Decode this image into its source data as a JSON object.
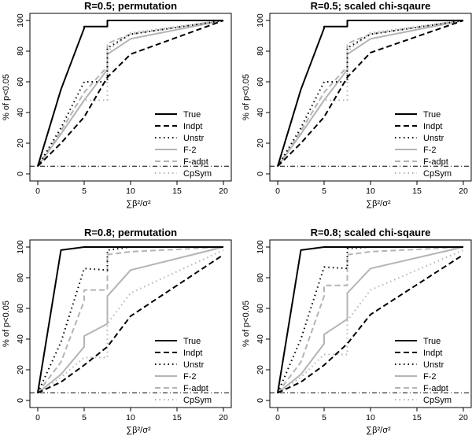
{
  "chart_data": [
    {
      "type": "line",
      "title": "R=0.5; permutation",
      "xlabel": "∑β²/σ²",
      "ylabel": "% of p<0.05",
      "xlim": [
        0,
        20
      ],
      "ylim": [
        0,
        100
      ],
      "xticks": [
        0,
        5,
        10,
        15,
        20
      ],
      "yticks": [
        0,
        20,
        40,
        60,
        80,
        100
      ],
      "reference_line": 5,
      "legend_position": "right",
      "series": [
        {
          "name": "True",
          "style": "solid-black",
          "x": [
            0,
            2.5,
            5,
            5,
            7.5,
            7.5,
            10,
            20
          ],
          "y": [
            5,
            55,
            95,
            96,
            96,
            100,
            100,
            100
          ]
        },
        {
          "name": "Indpt",
          "style": "dashed-black",
          "x": [
            0,
            2.5,
            5,
            7.5,
            10,
            20
          ],
          "y": [
            5,
            20,
            37,
            63,
            78,
            100
          ]
        },
        {
          "name": "Unstr",
          "style": "dotted-black",
          "x": [
            0,
            2.5,
            5,
            5,
            7.5,
            7.5,
            10,
            20
          ],
          "y": [
            5,
            30,
            60,
            60,
            60,
            82,
            91,
            100
          ]
        },
        {
          "name": "F-2",
          "style": "solid-gray",
          "x": [
            0,
            2.5,
            5,
            5,
            7.5,
            7.5,
            10,
            20
          ],
          "y": [
            5,
            26,
            48,
            48,
            68,
            78,
            88,
            100
          ]
        },
        {
          "name": "F-adpt",
          "style": "dashed-gray",
          "x": [
            0,
            2.5,
            5,
            5,
            7.5,
            7.5,
            10,
            20
          ],
          "y": [
            5,
            28,
            53,
            53,
            70,
            85,
            91,
            100
          ]
        },
        {
          "name": "CpSym",
          "style": "dotted-gray",
          "x": [
            0,
            2.5,
            5,
            7.5,
            7.5,
            10,
            20
          ],
          "y": [
            5,
            26,
            48,
            48,
            80,
            92,
            100
          ]
        }
      ]
    },
    {
      "type": "line",
      "title": "R=0.5; scaled chi-sqaure",
      "xlabel": "∑β²/σ²",
      "ylabel": "% of p<0.05",
      "xlim": [
        0,
        20
      ],
      "ylim": [
        0,
        100
      ],
      "xticks": [
        0,
        5,
        10,
        15,
        20
      ],
      "yticks": [
        0,
        20,
        40,
        60,
        80,
        100
      ],
      "reference_line": 5,
      "legend_position": "right",
      "series": [
        {
          "name": "True",
          "style": "solid-black",
          "x": [
            0,
            2.5,
            5,
            5,
            7.5,
            7.5,
            10,
            20
          ],
          "y": [
            5,
            55,
            95,
            96,
            96,
            100,
            100,
            100
          ]
        },
        {
          "name": "Indpt",
          "style": "dashed-black",
          "x": [
            0,
            2.5,
            5,
            7.5,
            10,
            20
          ],
          "y": [
            5,
            20,
            37,
            63,
            79,
            100
          ]
        },
        {
          "name": "Unstr",
          "style": "dotted-black",
          "x": [
            0,
            2.5,
            5,
            5,
            7.5,
            7.5,
            10,
            20
          ],
          "y": [
            5,
            30,
            60,
            60,
            60,
            82,
            91,
            100
          ]
        },
        {
          "name": "F-2",
          "style": "solid-gray",
          "x": [
            0,
            2.5,
            5,
            5,
            7.5,
            7.5,
            10,
            20
          ],
          "y": [
            5,
            26,
            48,
            48,
            68,
            78,
            88,
            100
          ]
        },
        {
          "name": "F-adpt",
          "style": "dashed-gray",
          "x": [
            0,
            2.5,
            5,
            5,
            7.5,
            7.5,
            10,
            20
          ],
          "y": [
            5,
            28,
            53,
            53,
            70,
            85,
            91,
            100
          ]
        },
        {
          "name": "CpSym",
          "style": "dotted-gray",
          "x": [
            0,
            2.5,
            5,
            7.5,
            7.5,
            10,
            20
          ],
          "y": [
            5,
            26,
            48,
            48,
            80,
            92,
            100
          ]
        }
      ]
    },
    {
      "type": "line",
      "title": "R=0.8; permutation",
      "xlabel": "∑β²/σ²",
      "ylabel": "% of p<0.05",
      "xlim": [
        0,
        20
      ],
      "ylim": [
        0,
        100
      ],
      "xticks": [
        0,
        5,
        10,
        15,
        20
      ],
      "yticks": [
        0,
        20,
        40,
        60,
        80,
        100
      ],
      "reference_line": 5,
      "legend_position": "right",
      "series": [
        {
          "name": "True",
          "style": "solid-black",
          "x": [
            0,
            2.5,
            5,
            20
          ],
          "y": [
            5,
            98,
            100,
            100
          ]
        },
        {
          "name": "Indpt",
          "style": "dashed-black",
          "x": [
            0,
            2.5,
            5,
            7.5,
            10,
            20
          ],
          "y": [
            5,
            12,
            23,
            35,
            55,
            95
          ]
        },
        {
          "name": "Unstr",
          "style": "dotted-black",
          "x": [
            0,
            2.5,
            5,
            5,
            7.5,
            7.5,
            10,
            20
          ],
          "y": [
            5,
            38,
            86,
            86,
            85,
            98,
            100,
            100
          ]
        },
        {
          "name": "F-2",
          "style": "solid-gray",
          "x": [
            0,
            2.5,
            5,
            5,
            7.5,
            7.5,
            10,
            20
          ],
          "y": [
            5,
            17,
            35,
            42,
            50,
            68,
            85,
            100
          ]
        },
        {
          "name": "F-adpt",
          "style": "dashed-gray",
          "x": [
            0,
            2.5,
            5,
            5,
            7.5,
            7.5,
            10,
            20
          ],
          "y": [
            5,
            25,
            65,
            72,
            72,
            95,
            97,
            100
          ]
        },
        {
          "name": "CpSym",
          "style": "dotted-gray",
          "x": [
            0,
            2.5,
            5,
            5,
            7.5,
            7.5,
            10,
            20
          ],
          "y": [
            5,
            15,
            28,
            28,
            28,
            50,
            70,
            98
          ]
        }
      ]
    },
    {
      "type": "line",
      "title": "R=0.8; scaled chi-sqaure",
      "xlabel": "∑β²/σ²",
      "ylabel": "% of p<0.05",
      "xlim": [
        0,
        20
      ],
      "ylim": [
        0,
        100
      ],
      "xticks": [
        0,
        5,
        10,
        15,
        20
      ],
      "yticks": [
        0,
        20,
        40,
        60,
        80,
        100
      ],
      "reference_line": 5,
      "legend_position": "right",
      "series": [
        {
          "name": "True",
          "style": "solid-black",
          "x": [
            0,
            2.5,
            5,
            20
          ],
          "y": [
            5,
            98,
            100,
            100
          ]
        },
        {
          "name": "Indpt",
          "style": "dashed-black",
          "x": [
            0,
            2.5,
            5,
            7.5,
            10,
            20
          ],
          "y": [
            5,
            12,
            23,
            37,
            56,
            95
          ]
        },
        {
          "name": "Unstr",
          "style": "dotted-black",
          "x": [
            0,
            2.5,
            5,
            5,
            7.5,
            7.5,
            10,
            20
          ],
          "y": [
            5,
            40,
            87,
            87,
            86,
            99,
            100,
            100
          ]
        },
        {
          "name": "F-2",
          "style": "solid-gray",
          "x": [
            0,
            2.5,
            5,
            5,
            7.5,
            7.5,
            10,
            20
          ],
          "y": [
            5,
            17,
            37,
            43,
            53,
            70,
            86,
            100
          ]
        },
        {
          "name": "F-adpt",
          "style": "dashed-gray",
          "x": [
            0,
            2.5,
            5,
            5,
            7.5,
            7.5,
            10,
            20
          ],
          "y": [
            5,
            25,
            68,
            75,
            75,
            95,
            97,
            100
          ]
        },
        {
          "name": "CpSym",
          "style": "dotted-gray",
          "x": [
            0,
            2.5,
            5,
            5,
            7.5,
            7.5,
            10,
            20
          ],
          "y": [
            5,
            15,
            30,
            30,
            30,
            52,
            72,
            98
          ]
        }
      ]
    }
  ],
  "styles": {
    "solid-black": {
      "color": "#000000",
      "dash": ""
    },
    "dashed-black": {
      "color": "#000000",
      "dash": "7,4"
    },
    "dotted-black": {
      "color": "#000000",
      "dash": "1.5,4"
    },
    "solid-gray": {
      "color": "#b4b4b4",
      "dash": ""
    },
    "dashed-gray": {
      "color": "#b4b4b4",
      "dash": "7,4"
    },
    "dotted-gray": {
      "color": "#b4b4b4",
      "dash": "1.5,4"
    }
  }
}
